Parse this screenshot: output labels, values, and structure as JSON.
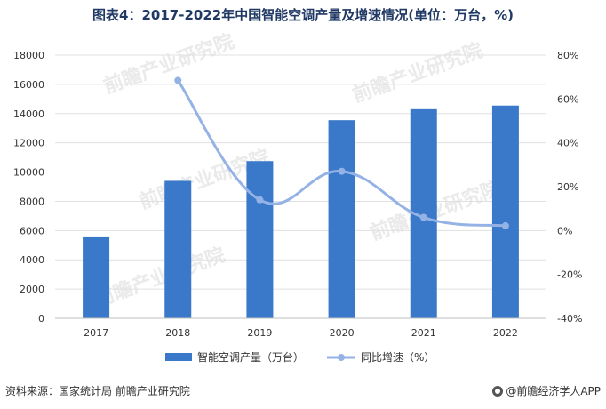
{
  "title": "图表4：2017-2022年中国智能空调产量及增速情况(单位：万台，%)",
  "source": "资料来源：国家统计局 前瞻产业研究院",
  "brand": "@前瞻经济学人APP",
  "watermark": "前瞻产业研究院",
  "colors": {
    "bar": "#3a78c9",
    "line": "#94b2e6",
    "title": "#1f3864",
    "grid": "#e0e0e0"
  },
  "chart_data": {
    "type": "bar",
    "categories": [
      "2017",
      "2018",
      "2019",
      "2020",
      "2021",
      "2022"
    ],
    "series": [
      {
        "name": "智能空调产量（万台）",
        "type": "bar",
        "axis": "left",
        "values": [
          5600,
          9400,
          10750,
          13550,
          14300,
          14550
        ]
      },
      {
        "name": "同比增速（%）",
        "type": "line",
        "axis": "right",
        "values": [
          null,
          68.5,
          14,
          27,
          6,
          2.2
        ]
      }
    ],
    "ylim_left": [
      0,
      18000
    ],
    "ylim_right": [
      -40,
      80
    ],
    "yticks_left": [
      "0",
      "2000",
      "4000",
      "6000",
      "8000",
      "10000",
      "12000",
      "14000",
      "16000",
      "18000"
    ],
    "yticks_right": [
      "-40%",
      "-20%",
      "0%",
      "20%",
      "40%",
      "60%",
      "80%"
    ],
    "grid": true,
    "legend_position": "bottom"
  }
}
